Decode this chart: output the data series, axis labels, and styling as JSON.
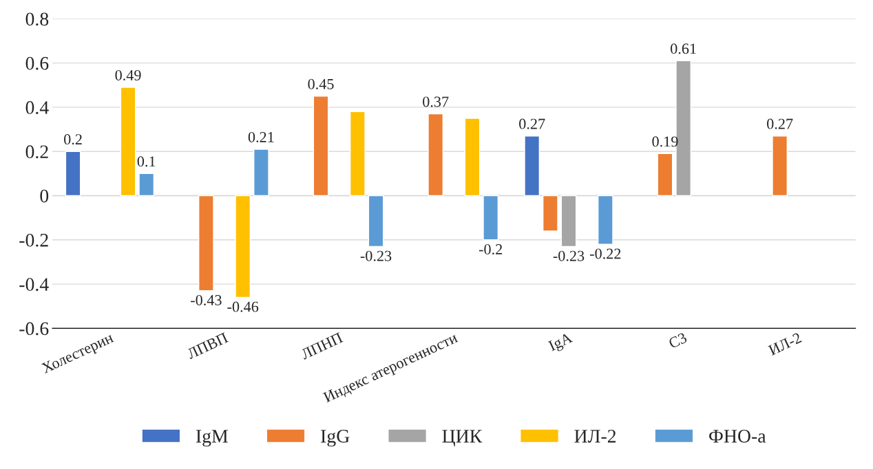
{
  "chart_data": {
    "type": "bar",
    "categories": [
      "Холестерин",
      "ЛПВП",
      "ЛПНП",
      "Индекс атерогенности",
      "IgA",
      "C3",
      "ИЛ-2"
    ],
    "series": [
      {
        "name": "IgM",
        "color": "#4472c4",
        "values": [
          0.2,
          null,
          null,
          null,
          0.27,
          null,
          null
        ],
        "value_labels": [
          "0.2",
          null,
          null,
          null,
          "0.27",
          null,
          null
        ]
      },
      {
        "name": "IgG",
        "color": "#ed7d31",
        "values": [
          null,
          -0.43,
          0.45,
          0.37,
          -0.16,
          0.19,
          0.27
        ],
        "value_labels": [
          null,
          "-0.43",
          "0.45",
          "0.37",
          null,
          "0.19",
          "0.27"
        ]
      },
      {
        "name": "ЦИК",
        "color": "#a5a5a5",
        "values": [
          null,
          null,
          null,
          null,
          -0.23,
          0.61,
          null
        ],
        "value_labels": [
          null,
          null,
          null,
          null,
          "-0.23",
          "0.61",
          null
        ]
      },
      {
        "name": "ИЛ-2",
        "color": "#ffc000",
        "values": [
          0.49,
          -0.46,
          0.38,
          0.35,
          null,
          null,
          null
        ],
        "value_labels": [
          "0.49",
          "-0.46",
          null,
          null,
          null,
          null,
          null
        ]
      },
      {
        "name": "ФНО-а",
        "color": "#5b9bd5",
        "values": [
          0.1,
          0.21,
          -0.23,
          -0.2,
          -0.22,
          null,
          null
        ],
        "value_labels": [
          "0.1",
          "0.21",
          "-0.23",
          "-0.2",
          "-0.22",
          null,
          null
        ]
      }
    ],
    "ylim": [
      -0.6,
      0.8
    ],
    "yticks": [
      -0.6,
      -0.4,
      -0.2,
      0,
      0.2,
      0.4,
      0.6,
      0.8
    ],
    "grid": "y",
    "legend": "bottom"
  }
}
